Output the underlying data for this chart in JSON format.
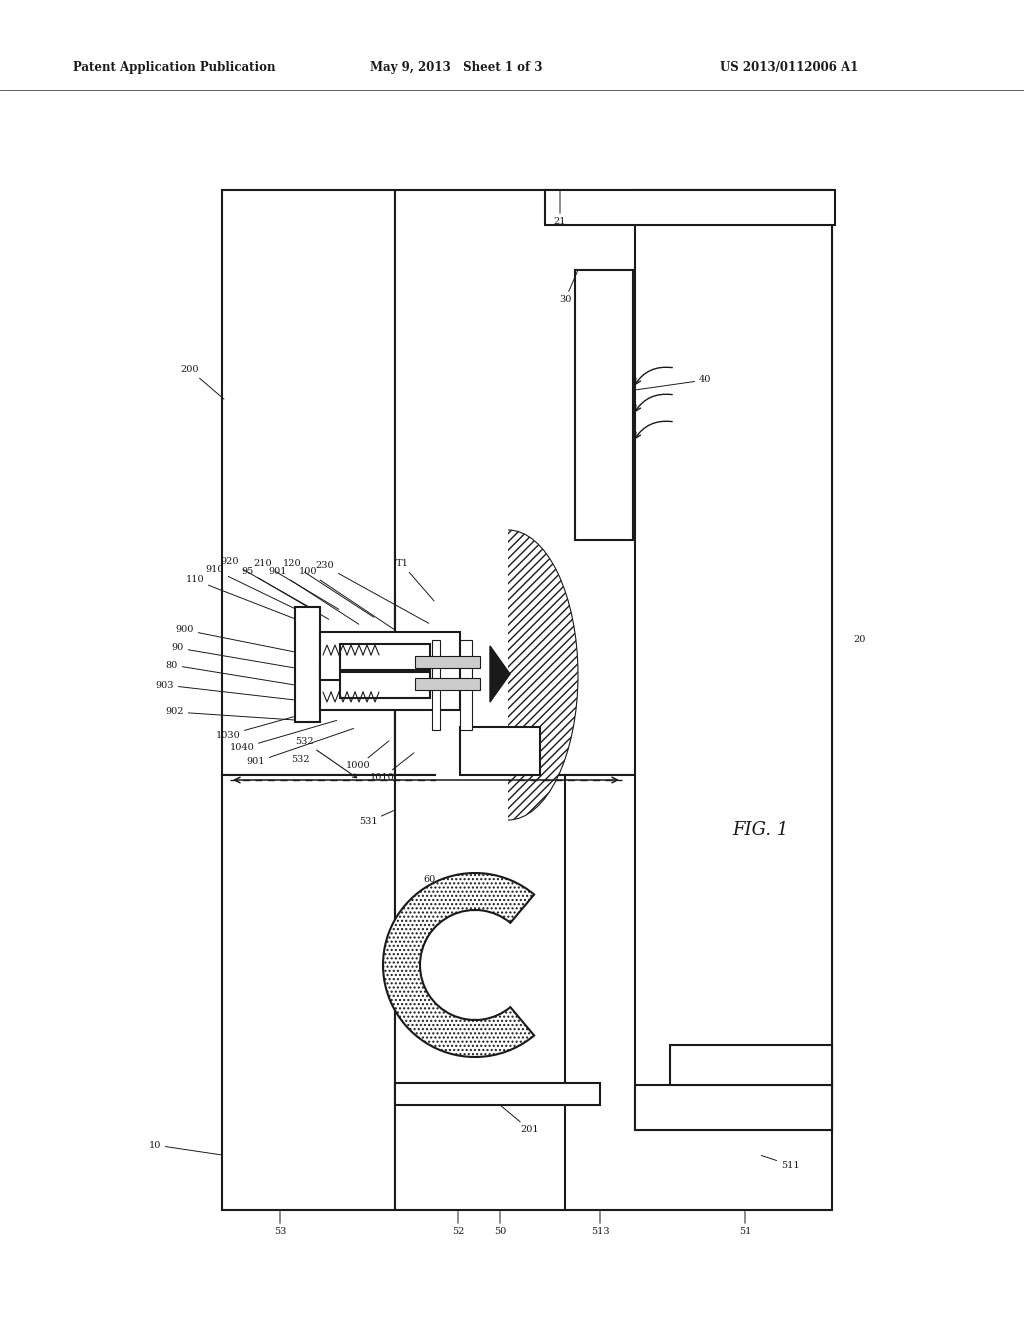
{
  "bg_color": "#ffffff",
  "lc": "#1a1a1a",
  "header_left": "Patent Application Publication",
  "header_mid": "May 9, 2013   Sheet 1 of 3",
  "header_right": "US 2013/0112006 A1",
  "fig_label": "FIG. 1",
  "lw_main": 1.5,
  "lw_thin": 0.8,
  "fs": 7.0,
  "fs_hdr": 8.5
}
